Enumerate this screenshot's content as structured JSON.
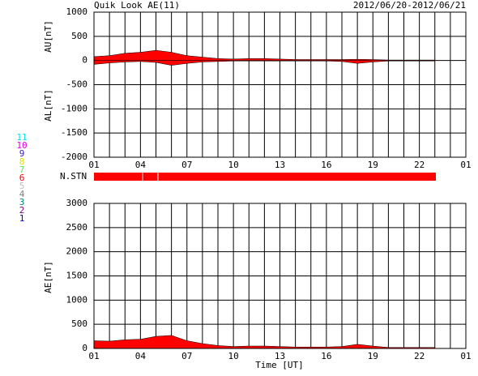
{
  "chart_data": [
    {
      "type": "area",
      "title": "Quik Look AE(11)",
      "subtitle": "2012/06/20-2012/06/21",
      "x": [
        0,
        1,
        2,
        3,
        4,
        5,
        6,
        7,
        8,
        9,
        10,
        11,
        12,
        13,
        14,
        15,
        16,
        17,
        18,
        19,
        20,
        21,
        22
      ],
      "series": [
        {
          "name": "AU[nT]",
          "color": "#ff0000",
          "values": [
            80,
            100,
            150,
            170,
            210,
            170,
            100,
            70,
            40,
            30,
            40,
            40,
            30,
            20,
            20,
            20,
            20,
            25,
            20,
            10,
            10,
            10,
            10
          ]
        },
        {
          "name": "AL[nT]",
          "color": "#ff0000",
          "values": [
            -80,
            -50,
            -30,
            -20,
            -40,
            -100,
            -60,
            -30,
            -20,
            -10,
            -10,
            -10,
            -10,
            -10,
            -10,
            -10,
            -20,
            -60,
            -30,
            -10,
            -10,
            -10,
            -10
          ]
        }
      ],
      "xlim": [
        0,
        24
      ],
      "xticks": [
        {
          "value": 0,
          "label": "01"
        },
        {
          "value": 3,
          "label": "04"
        },
        {
          "value": 6,
          "label": "07"
        },
        {
          "value": 9,
          "label": "10"
        },
        {
          "value": 12,
          "label": "13"
        },
        {
          "value": 15,
          "label": "16"
        },
        {
          "value": 18,
          "label": "19"
        },
        {
          "value": 21,
          "label": "22"
        },
        {
          "value": 24,
          "label": "01"
        }
      ],
      "xgrid_step": 1,
      "ylim": [
        -2000,
        1000
      ],
      "yticks": [
        1000,
        500,
        0,
        -500,
        -1000,
        -1500,
        -2000
      ],
      "grid": true
    },
    {
      "type": "area",
      "x_label": "Time [UT]",
      "y_label": "AE[nT]",
      "x": [
        0,
        1,
        2,
        3,
        4,
        5,
        6,
        7,
        8,
        9,
        10,
        11,
        12,
        13,
        14,
        15,
        16,
        17,
        18,
        19,
        20,
        21,
        22
      ],
      "series": [
        {
          "name": "AE",
          "color": "#ff0000",
          "values": [
            160,
            150,
            180,
            190,
            250,
            270,
            160,
            100,
            60,
            40,
            50,
            50,
            40,
            30,
            30,
            30,
            40,
            85,
            50,
            20,
            20,
            20,
            20
          ]
        }
      ],
      "xlim": [
        0,
        24
      ],
      "xticks": [
        {
          "value": 0,
          "label": "01"
        },
        {
          "value": 3,
          "label": "04"
        },
        {
          "value": 6,
          "label": "07"
        },
        {
          "value": 9,
          "label": "10"
        },
        {
          "value": 12,
          "label": "13"
        },
        {
          "value": 15,
          "label": "16"
        },
        {
          "value": 18,
          "label": "19"
        },
        {
          "value": 21,
          "label": "22"
        },
        {
          "value": 24,
          "label": "01"
        }
      ],
      "xgrid_step": 1,
      "ylim": [
        0,
        3000
      ],
      "yticks": [
        3000,
        2500,
        2000,
        1500,
        1000,
        500,
        0
      ],
      "grid": true
    }
  ],
  "station_panel": {
    "label": "N.STN",
    "color": "#ff0000",
    "stations": [
      {
        "label": "11",
        "color": "#00e0e0"
      },
      {
        "label": "10",
        "color": "#e000e0"
      },
      {
        "label": "9",
        "color": "#4020c0"
      },
      {
        "label": "8",
        "color": "#e0e000"
      },
      {
        "label": "7",
        "color": "#60e060"
      },
      {
        "label": "6",
        "color": "#ff0000"
      },
      {
        "label": "5",
        "color": "#c0c0c0"
      },
      {
        "label": "4",
        "color": "#808080"
      },
      {
        "label": "3",
        "color": "#008080"
      },
      {
        "label": "2",
        "color": "#800080"
      },
      {
        "label": "1",
        "color": "#0000c0"
      }
    ]
  }
}
